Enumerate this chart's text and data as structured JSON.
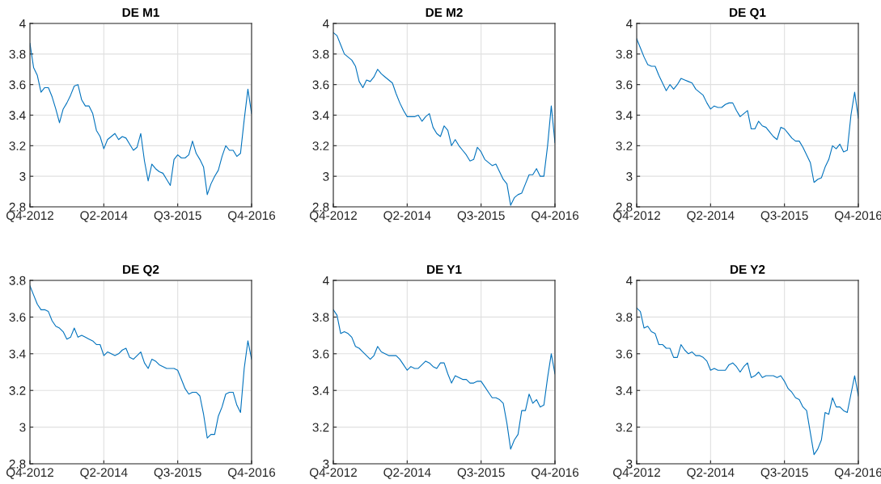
{
  "chart_data": [
    {
      "type": "line",
      "title": "DE M1",
      "grid": true,
      "ylim": [
        2.8,
        4
      ],
      "yticks": [
        2.8,
        3,
        3.2,
        3.4,
        3.6,
        3.8,
        4
      ],
      "categories": [
        "Q4-2012",
        null,
        null,
        null,
        null,
        null,
        null,
        null,
        null,
        null,
        null,
        null,
        null,
        null,
        null,
        null,
        null,
        null,
        null,
        null,
        "Q2-2014",
        null,
        null,
        null,
        null,
        null,
        null,
        null,
        null,
        null,
        null,
        null,
        null,
        null,
        null,
        null,
        null,
        null,
        null,
        null,
        "Q3-2015",
        null,
        null,
        null,
        null,
        null,
        null,
        null,
        null,
        null,
        null,
        null,
        null,
        null,
        null,
        null,
        null,
        null,
        null,
        null,
        "Q4-2016"
      ],
      "series": [
        {
          "color": "#0072bd",
          "values": [
            3.87,
            3.71,
            3.66,
            3.55,
            3.58,
            3.58,
            3.52,
            3.44,
            3.35,
            3.44,
            3.48,
            3.53,
            3.59,
            3.6,
            3.5,
            3.46,
            3.46,
            3.41,
            3.3,
            3.26,
            3.18,
            3.24,
            3.26,
            3.28,
            3.24,
            3.26,
            3.25,
            3.21,
            3.17,
            3.19,
            3.28,
            3.1,
            2.97,
            3.08,
            3.05,
            3.03,
            3.02,
            2.98,
            2.94,
            3.11,
            3.14,
            3.12,
            3.12,
            3.14,
            3.23,
            3.15,
            3.11,
            3.06,
            2.88,
            2.95,
            3.0,
            3.04,
            3.13,
            3.2,
            3.17,
            3.17,
            3.13,
            3.15,
            3.37,
            3.57,
            3.41
          ]
        }
      ]
    },
    {
      "type": "line",
      "title": "DE M2",
      "grid": true,
      "ylim": [
        2.8,
        4
      ],
      "yticks": [
        2.8,
        3,
        3.2,
        3.4,
        3.6,
        3.8,
        4
      ],
      "categories": [
        "Q4-2012",
        null,
        null,
        null,
        null,
        null,
        null,
        null,
        null,
        null,
        null,
        null,
        null,
        null,
        null,
        null,
        null,
        null,
        null,
        null,
        "Q2-2014",
        null,
        null,
        null,
        null,
        null,
        null,
        null,
        null,
        null,
        null,
        null,
        null,
        null,
        null,
        null,
        null,
        null,
        null,
        null,
        "Q3-2015",
        null,
        null,
        null,
        null,
        null,
        null,
        null,
        null,
        null,
        null,
        null,
        null,
        null,
        null,
        null,
        null,
        null,
        null,
        null,
        "Q4-2016"
      ],
      "series": [
        {
          "color": "#0072bd",
          "values": [
            3.94,
            3.92,
            3.86,
            3.8,
            3.78,
            3.76,
            3.72,
            3.62,
            3.58,
            3.63,
            3.62,
            3.65,
            3.7,
            3.67,
            3.65,
            3.63,
            3.61,
            3.54,
            3.48,
            3.43,
            3.39,
            3.39,
            3.39,
            3.4,
            3.36,
            3.39,
            3.41,
            3.32,
            3.28,
            3.26,
            3.33,
            3.3,
            3.2,
            3.24,
            3.2,
            3.17,
            3.14,
            3.1,
            3.11,
            3.19,
            3.16,
            3.11,
            3.09,
            3.07,
            3.08,
            3.03,
            2.98,
            2.95,
            2.81,
            2.86,
            2.88,
            2.89,
            2.95,
            3.01,
            3.01,
            3.05,
            3.0,
            3.0,
            3.2,
            3.46,
            3.22
          ]
        }
      ]
    },
    {
      "type": "line",
      "title": "DE Q1",
      "grid": true,
      "ylim": [
        2.8,
        4
      ],
      "yticks": [
        2.8,
        3,
        3.2,
        3.4,
        3.6,
        3.8,
        4
      ],
      "categories": [
        "Q4-2012",
        null,
        null,
        null,
        null,
        null,
        null,
        null,
        null,
        null,
        null,
        null,
        null,
        null,
        null,
        null,
        null,
        null,
        null,
        null,
        "Q2-2014",
        null,
        null,
        null,
        null,
        null,
        null,
        null,
        null,
        null,
        null,
        null,
        null,
        null,
        null,
        null,
        null,
        null,
        null,
        null,
        "Q3-2015",
        null,
        null,
        null,
        null,
        null,
        null,
        null,
        null,
        null,
        null,
        null,
        null,
        null,
        null,
        null,
        null,
        null,
        null,
        null,
        "Q4-2016"
      ],
      "series": [
        {
          "color": "#0072bd",
          "values": [
            3.9,
            3.84,
            3.78,
            3.73,
            3.72,
            3.72,
            3.66,
            3.61,
            3.56,
            3.6,
            3.57,
            3.6,
            3.64,
            3.63,
            3.62,
            3.61,
            3.57,
            3.55,
            3.53,
            3.48,
            3.44,
            3.46,
            3.45,
            3.45,
            3.47,
            3.48,
            3.48,
            3.43,
            3.39,
            3.41,
            3.43,
            3.31,
            3.31,
            3.36,
            3.33,
            3.32,
            3.29,
            3.26,
            3.24,
            3.32,
            3.31,
            3.28,
            3.25,
            3.23,
            3.23,
            3.19,
            3.14,
            3.09,
            2.96,
            2.98,
            2.99,
            3.06,
            3.11,
            3.2,
            3.18,
            3.21,
            3.16,
            3.17,
            3.4,
            3.55,
            3.38
          ]
        }
      ]
    },
    {
      "type": "line",
      "title": "DE Q2",
      "grid": true,
      "ylim": [
        2.8,
        3.8
      ],
      "yticks": [
        2.8,
        3,
        3.2,
        3.4,
        3.6,
        3.8
      ],
      "categories": [
        "Q4-2012",
        null,
        null,
        null,
        null,
        null,
        null,
        null,
        null,
        null,
        null,
        null,
        null,
        null,
        null,
        null,
        null,
        null,
        null,
        null,
        "Q2-2014",
        null,
        null,
        null,
        null,
        null,
        null,
        null,
        null,
        null,
        null,
        null,
        null,
        null,
        null,
        null,
        null,
        null,
        null,
        null,
        "Q3-2015",
        null,
        null,
        null,
        null,
        null,
        null,
        null,
        null,
        null,
        null,
        null,
        null,
        null,
        null,
        null,
        null,
        null,
        null,
        null,
        "Q4-2016"
      ],
      "series": [
        {
          "color": "#0072bd",
          "values": [
            3.77,
            3.72,
            3.67,
            3.64,
            3.64,
            3.63,
            3.58,
            3.55,
            3.54,
            3.52,
            3.48,
            3.49,
            3.54,
            3.49,
            3.5,
            3.49,
            3.48,
            3.47,
            3.45,
            3.45,
            3.39,
            3.41,
            3.4,
            3.39,
            3.4,
            3.42,
            3.43,
            3.38,
            3.37,
            3.39,
            3.41,
            3.35,
            3.32,
            3.37,
            3.36,
            3.34,
            3.33,
            3.32,
            3.32,
            3.32,
            3.31,
            3.26,
            3.21,
            3.18,
            3.19,
            3.19,
            3.17,
            3.07,
            2.94,
            2.96,
            2.96,
            3.06,
            3.11,
            3.18,
            3.19,
            3.19,
            3.12,
            3.08,
            3.32,
            3.47,
            3.37
          ]
        }
      ]
    },
    {
      "type": "line",
      "title": "DE Y1",
      "grid": true,
      "ylim": [
        3,
        4
      ],
      "yticks": [
        3,
        3.2,
        3.4,
        3.6,
        3.8,
        4
      ],
      "categories": [
        "Q4-2012",
        null,
        null,
        null,
        null,
        null,
        null,
        null,
        null,
        null,
        null,
        null,
        null,
        null,
        null,
        null,
        null,
        null,
        null,
        null,
        "Q2-2014",
        null,
        null,
        null,
        null,
        null,
        null,
        null,
        null,
        null,
        null,
        null,
        null,
        null,
        null,
        null,
        null,
        null,
        null,
        null,
        "Q3-2015",
        null,
        null,
        null,
        null,
        null,
        null,
        null,
        null,
        null,
        null,
        null,
        null,
        null,
        null,
        null,
        null,
        null,
        null,
        null,
        "Q4-2016"
      ],
      "series": [
        {
          "color": "#0072bd",
          "values": [
            3.84,
            3.81,
            3.71,
            3.72,
            3.71,
            3.69,
            3.64,
            3.63,
            3.61,
            3.59,
            3.57,
            3.59,
            3.64,
            3.61,
            3.6,
            3.59,
            3.59,
            3.59,
            3.57,
            3.54,
            3.51,
            3.53,
            3.52,
            3.52,
            3.54,
            3.56,
            3.55,
            3.53,
            3.52,
            3.55,
            3.55,
            3.49,
            3.44,
            3.48,
            3.47,
            3.46,
            3.46,
            3.44,
            3.44,
            3.45,
            3.45,
            3.42,
            3.39,
            3.36,
            3.36,
            3.35,
            3.33,
            3.22,
            3.08,
            3.13,
            3.16,
            3.29,
            3.29,
            3.38,
            3.33,
            3.35,
            3.31,
            3.32,
            3.47,
            3.6,
            3.49
          ]
        }
      ]
    },
    {
      "type": "line",
      "title": "DE Y2",
      "grid": true,
      "ylim": [
        3,
        4
      ],
      "yticks": [
        3,
        3.2,
        3.4,
        3.6,
        3.8,
        4
      ],
      "categories": [
        "Q4-2012",
        null,
        null,
        null,
        null,
        null,
        null,
        null,
        null,
        null,
        null,
        null,
        null,
        null,
        null,
        null,
        null,
        null,
        null,
        null,
        "Q2-2014",
        null,
        null,
        null,
        null,
        null,
        null,
        null,
        null,
        null,
        null,
        null,
        null,
        null,
        null,
        null,
        null,
        null,
        null,
        null,
        "Q3-2015",
        null,
        null,
        null,
        null,
        null,
        null,
        null,
        null,
        null,
        null,
        null,
        null,
        null,
        null,
        null,
        null,
        null,
        null,
        null,
        "Q4-2016"
      ],
      "series": [
        {
          "color": "#0072bd",
          "values": [
            3.85,
            3.83,
            3.74,
            3.75,
            3.72,
            3.71,
            3.65,
            3.65,
            3.63,
            3.63,
            3.58,
            3.58,
            3.65,
            3.62,
            3.6,
            3.61,
            3.59,
            3.59,
            3.58,
            3.56,
            3.51,
            3.52,
            3.51,
            3.51,
            3.51,
            3.54,
            3.55,
            3.53,
            3.5,
            3.53,
            3.55,
            3.47,
            3.48,
            3.5,
            3.47,
            3.48,
            3.48,
            3.48,
            3.47,
            3.48,
            3.45,
            3.41,
            3.39,
            3.36,
            3.35,
            3.31,
            3.29,
            3.17,
            3.05,
            3.08,
            3.13,
            3.28,
            3.27,
            3.36,
            3.31,
            3.31,
            3.29,
            3.28,
            3.38,
            3.48,
            3.37
          ]
        }
      ]
    }
  ]
}
